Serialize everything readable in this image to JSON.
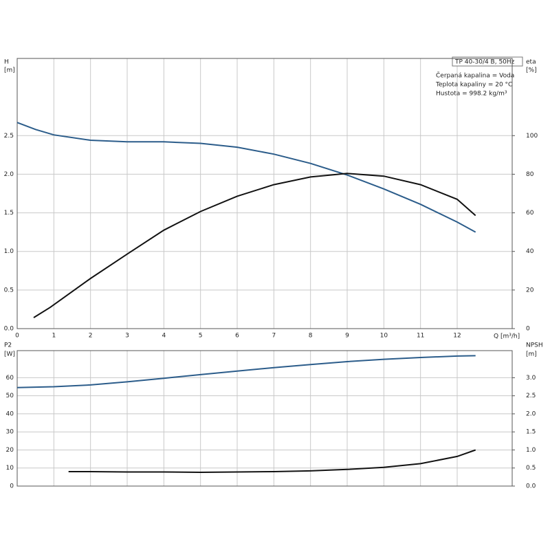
{
  "chart_data": [
    {
      "type": "line",
      "ylabel": "H",
      "ylabel_unit": "[m]",
      "y2label": "eta",
      "y2label_unit": "[%]",
      "xlabel": "Q [m³/h]",
      "annotations": [
        "TP 40-30/4 B, 50Hz",
        "Čerpaná kapalina = Voda",
        "Teplota kapaliny = 20 °C",
        "Hustota = 998.2 kg/m³"
      ],
      "xlim": [
        0,
        13.5
      ],
      "xticks": [
        0,
        1,
        2,
        3,
        4,
        5,
        6,
        7,
        8,
        9,
        10,
        11,
        12
      ],
      "ylim": [
        0,
        3.5
      ],
      "yticks": [
        {
          "value": 0,
          "label": "0.0"
        },
        0.5,
        {
          "value": 1,
          "label": "1.0"
        },
        1.5,
        {
          "value": 2,
          "label": "2.0"
        },
        2.5
      ],
      "y2lim": [
        0,
        140
      ],
      "y2ticks": [
        0,
        20,
        40,
        60,
        80,
        100
      ],
      "grid": true,
      "series": [
        {
          "color": "#2b5c8a",
          "x": [
            0,
            0.5,
            1,
            2,
            3,
            4,
            5,
            6,
            7,
            8,
            9,
            10,
            11,
            12,
            12.5
          ],
          "values": [
            2.67,
            2.58,
            2.51,
            2.44,
            2.42,
            2.42,
            2.4,
            2.35,
            2.26,
            2.14,
            1.99,
            1.81,
            1.61,
            1.38,
            1.25
          ]
        },
        {
          "color": "#111111",
          "axis": "y2",
          "x": [
            0.45,
            0.9,
            2,
            3,
            4,
            5,
            6,
            7,
            8,
            9,
            10,
            11,
            12,
            12.5
          ],
          "values": [
            5.7,
            11,
            26,
            38.6,
            51,
            60.7,
            68.6,
            74.6,
            78.6,
            80.4,
            79,
            74.6,
            67,
            58.6
          ]
        }
      ]
    },
    {
      "type": "line",
      "ylabel": "P2",
      "ylabel_unit": "[W]",
      "y2label": "NPSH",
      "y2label_unit": "[m]",
      "ylim": [
        0,
        75
      ],
      "yticks": [
        0,
        10,
        20,
        30,
        40,
        50,
        60
      ],
      "y2lim": [
        0,
        3.75
      ],
      "y2ticks": [
        {
          "value": 0,
          "label": "0.0"
        },
        0.5,
        {
          "value": 1,
          "label": "1.0"
        },
        1.5,
        {
          "value": 2,
          "label": "2.0"
        },
        2.5,
        {
          "value": 3,
          "label": "3.0"
        }
      ],
      "grid": true,
      "series": [
        {
          "color": "#2b5c8a",
          "x": [
            0,
            1,
            2,
            3,
            4,
            5,
            6,
            7,
            8,
            9,
            10,
            11,
            12,
            12.5
          ],
          "values": [
            54.5,
            55,
            56,
            57.7,
            59.7,
            61.7,
            63.7,
            65.6,
            67.3,
            68.9,
            70.2,
            71.2,
            72,
            72.2
          ]
        },
        {
          "color": "#111111",
          "axis": "y2",
          "x": [
            1.4,
            2,
            3,
            4,
            5,
            6,
            7,
            8,
            9,
            10,
            11,
            12,
            12.5
          ],
          "values": [
            0.4,
            0.4,
            0.39,
            0.39,
            0.38,
            0.39,
            0.4,
            0.42,
            0.46,
            0.52,
            0.62,
            0.82,
            1.0
          ]
        }
      ]
    }
  ]
}
